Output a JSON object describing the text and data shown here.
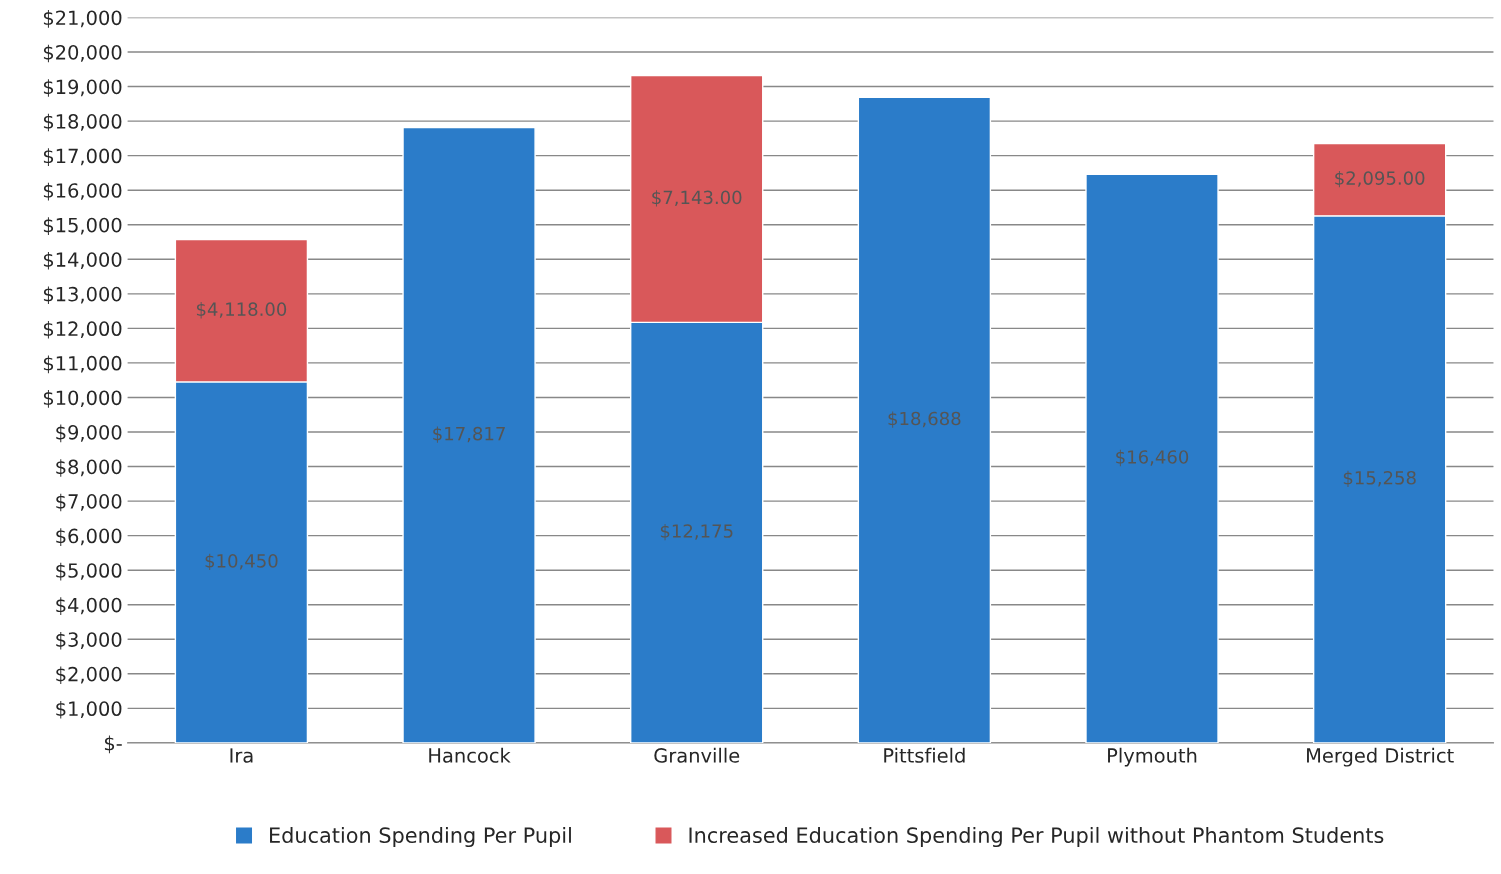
{
  "chart_data": {
    "type": "bar",
    "stacked": true,
    "categories": [
      "Ira",
      "Hancock",
      "Granville",
      "Pittsfield",
      "Plymouth",
      "Merged District"
    ],
    "series": [
      {
        "name": "Education Spending Per Pupil",
        "color": "#2b7cc9",
        "values": [
          10450,
          17817,
          12175,
          18688,
          16460,
          15258
        ],
        "value_labels": [
          "$10,450",
          "$17,817",
          "$12,175",
          "$18,688",
          "$16,460",
          "$15,258"
        ]
      },
      {
        "name": "Increased Education Spending Per Pupil without Phantom Students",
        "color": "#d9585a",
        "values": [
          4118,
          null,
          7143,
          null,
          null,
          2095
        ],
        "value_labels": [
          "$4,118.00",
          null,
          "$7,143.00",
          null,
          null,
          "$2,095.00"
        ]
      }
    ],
    "ylim": [
      0,
      21000
    ],
    "yticks": [
      {
        "value": 0,
        "label": "$-"
      },
      {
        "value": 1000,
        "label": "$1,000"
      },
      {
        "value": 2000,
        "label": "$2,000"
      },
      {
        "value": 3000,
        "label": "$3,000"
      },
      {
        "value": 4000,
        "label": "$4,000"
      },
      {
        "value": 5000,
        "label": "$5,000"
      },
      {
        "value": 6000,
        "label": "$6,000"
      },
      {
        "value": 7000,
        "label": "$7,000"
      },
      {
        "value": 8000,
        "label": "$8,000"
      },
      {
        "value": 9000,
        "label": "$9,000"
      },
      {
        "value": 10000,
        "label": "$10,000"
      },
      {
        "value": 11000,
        "label": "$11,000"
      },
      {
        "value": 12000,
        "label": "$12,000"
      },
      {
        "value": 13000,
        "label": "$13,000"
      },
      {
        "value": 14000,
        "label": "$14,000"
      },
      {
        "value": 15000,
        "label": "$15,000"
      },
      {
        "value": 16000,
        "label": "$16,000"
      },
      {
        "value": 17000,
        "label": "$17,000"
      },
      {
        "value": 18000,
        "label": "$18,000"
      },
      {
        "value": 19000,
        "label": "$19,000"
      },
      {
        "value": 20000,
        "label": "$20,000"
      },
      {
        "value": 21000,
        "label": "$21,000"
      }
    ],
    "grid": "y",
    "legend": "bottom"
  }
}
